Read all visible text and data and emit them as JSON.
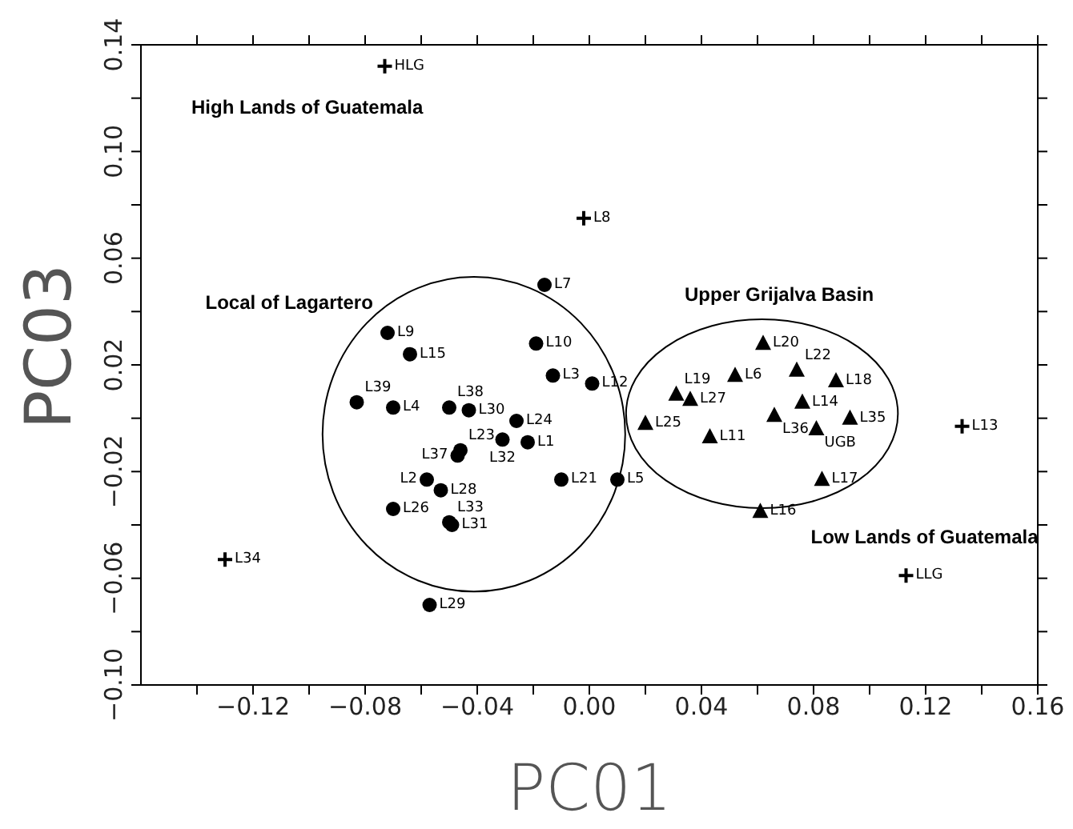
{
  "chart_data": {
    "type": "scatter",
    "xlabel": "PC01",
    "ylabel": "PC03",
    "xlim": [
      -0.16,
      0.16
    ],
    "ylim": [
      -0.1,
      0.14
    ],
    "xticks": [
      {
        "value": -0.14,
        "label": null
      },
      {
        "value": -0.12,
        "label": "−0.12"
      },
      {
        "value": -0.1,
        "label": null
      },
      {
        "value": -0.08,
        "label": "−0.08"
      },
      {
        "value": -0.06,
        "label": null
      },
      {
        "value": -0.04,
        "label": "−0.04"
      },
      {
        "value": -0.02,
        "label": null
      },
      {
        "value": 0,
        "label": "0.00"
      },
      {
        "value": 0.02,
        "label": null
      },
      {
        "value": 0.04,
        "label": "0.04"
      },
      {
        "value": 0.06,
        "label": null
      },
      {
        "value": 0.08,
        "label": "0.08"
      },
      {
        "value": 0.1,
        "label": null
      },
      {
        "value": 0.12,
        "label": "0.12"
      },
      {
        "value": 0.14,
        "label": null
      },
      {
        "value": 0.16,
        "label": "0.16"
      }
    ],
    "yticks": [
      {
        "value": -0.1,
        "label": "−0.10"
      },
      {
        "value": -0.08,
        "label": null
      },
      {
        "value": -0.06,
        "label": "−0.06"
      },
      {
        "value": -0.04,
        "label": null
      },
      {
        "value": -0.02,
        "label": "−0.02"
      },
      {
        "value": 0,
        "label": null
      },
      {
        "value": 0.02,
        "label": "0.02"
      },
      {
        "value": 0.04,
        "label": null
      },
      {
        "value": 0.06,
        "label": "0.06"
      },
      {
        "value": 0.08,
        "label": null
      },
      {
        "value": 0.1,
        "label": "0.10"
      },
      {
        "value": 0.12,
        "label": null
      },
      {
        "value": 0.14,
        "label": "0.14"
      }
    ],
    "grid": false,
    "legend": false,
    "series": [
      {
        "color": "#000000",
        "marker": "circle",
        "x": [
          -0.016,
          -0.072,
          -0.019,
          -0.064,
          -0.013,
          0.001,
          -0.083,
          -0.07,
          -0.05,
          -0.043,
          -0.026,
          -0.031,
          -0.022,
          -0.046,
          -0.047,
          -0.058,
          -0.053,
          -0.01,
          0.01,
          -0.07,
          -0.05,
          -0.049,
          -0.057
        ],
        "values": [
          0.05,
          0.032,
          0.028,
          0.024,
          0.016,
          0.013,
          0.006,
          0.004,
          0.004,
          0.003,
          -0.001,
          -0.008,
          -0.009,
          -0.012,
          -0.014,
          -0.023,
          -0.027,
          -0.023,
          -0.023,
          -0.034,
          -0.039,
          -0.04,
          -0.07
        ],
        "value_labels": [
          "L7",
          "L9",
          "L10",
          "L15",
          "L3",
          "L12",
          "L39",
          "L4",
          "L38",
          "L30",
          "L24",
          "L32",
          "L1",
          "L23",
          "L37",
          "L2",
          "L28",
          "L21",
          "L5",
          "L26",
          "L33",
          "L31",
          "L29"
        ]
      },
      {
        "color": "#000000",
        "marker": "triangle",
        "x": [
          0.062,
          0.052,
          0.074,
          0.088,
          0.031,
          0.036,
          0.076,
          0.066,
          0.093,
          0.02,
          0.081,
          0.043,
          0.083,
          0.061
        ],
        "values": [
          0.028,
          0.016,
          0.018,
          0.014,
          0.009,
          0.007,
          0.006,
          0.001,
          0,
          -0.002,
          -0.004,
          -0.007,
          -0.023,
          -0.035
        ],
        "value_labels": [
          "L20",
          "L6",
          "L22",
          "L18",
          "L19",
          "L27",
          "L14",
          "L36",
          "L35",
          "L25",
          "UGB",
          "L11",
          "L17",
          "L16"
        ]
      },
      {
        "color": "#000000",
        "marker": "cross",
        "x": [
          -0.073,
          -0.002,
          0.133,
          0.113,
          -0.13
        ],
        "values": [
          0.132,
          0.075,
          -0.003,
          -0.059,
          -0.053
        ],
        "value_labels": [
          "HLG",
          "L8",
          "L13",
          "LLG",
          "L34"
        ]
      }
    ],
    "annotations": [
      "High Lands of Guatemala",
      "Local of Lagartero",
      "Upper Grijalva Basin",
      "Low Lands of Guatemala"
    ]
  }
}
